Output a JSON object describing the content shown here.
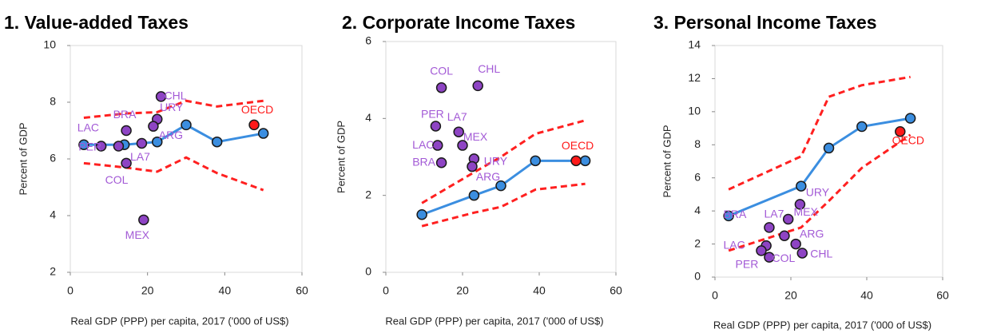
{
  "chart_data": [
    {
      "type": "scatter",
      "title": "1.  Value-added Taxes",
      "xlabel": "Real GDP (PPP) per capita, 2017 ('000 of US$)",
      "ylabel": "Percent of GDP",
      "xlim": [
        0,
        60
      ],
      "xticks": [
        0,
        20,
        40,
        60
      ],
      "ylim": [
        2,
        10
      ],
      "yticks": [
        2,
        4,
        6,
        8,
        10
      ],
      "trend": {
        "color": "#3b8ee0",
        "x": [
          3.5,
          14,
          22.5,
          30,
          38,
          50
        ],
        "values": [
          6.5,
          6.5,
          6.6,
          7.2,
          6.6,
          6.9
        ]
      },
      "upper": {
        "color": "#ff2020",
        "x": [
          3.5,
          14,
          22.5,
          30,
          38,
          50
        ],
        "values": [
          7.45,
          7.6,
          7.65,
          8.05,
          7.85,
          8.05
        ]
      },
      "lower": {
        "color": "#ff2020",
        "x": [
          3.5,
          14,
          22.5,
          30,
          38,
          50
        ],
        "values": [
          5.85,
          5.7,
          5.55,
          6.05,
          5.5,
          4.9
        ]
      },
      "points": {
        "color": "#8e44c4",
        "label_color": "#a35ad6",
        "labels": [
          "CHL",
          "URY",
          "ARG",
          "BRA",
          "LAC",
          "PER",
          "LA7",
          "COL",
          "MEX"
        ],
        "x": [
          23.5,
          22.5,
          21.5,
          14.5,
          12.5,
          8,
          18.5,
          14.5,
          19
        ],
        "values": [
          8.2,
          7.4,
          7.15,
          7.0,
          6.45,
          6.45,
          6.55,
          5.85,
          3.85
        ]
      },
      "oecd": {
        "label": "OECD",
        "color": "#ff1a1a",
        "x": 47.6,
        "value": 7.2
      }
    },
    {
      "type": "scatter",
      "title": "2.  Corporate Income Taxes",
      "xlabel": "Real GDP (PPP) per capita, 2017 ('000 of US$)",
      "ylabel": "Percent of GDP",
      "xlim": [
        0,
        60
      ],
      "xticks": [
        0,
        20,
        40,
        60
      ],
      "ylim": [
        0,
        6
      ],
      "yticks": [
        0,
        2,
        4,
        6
      ],
      "trend": {
        "color": "#3b8ee0",
        "x": [
          9.4,
          23,
          30,
          39,
          52
        ],
        "values": [
          1.5,
          2.0,
          2.25,
          2.9,
          2.9
        ]
      },
      "upper": {
        "color": "#ff2020",
        "x": [
          9.4,
          23,
          30,
          39,
          52
        ],
        "values": [
          1.8,
          2.6,
          3.0,
          3.6,
          3.95
        ]
      },
      "lower": {
        "color": "#ff2020",
        "x": [
          9.4,
          23,
          30,
          39,
          52
        ],
        "values": [
          1.2,
          1.55,
          1.7,
          2.15,
          2.3
        ]
      },
      "points": {
        "color": "#8e44c4",
        "label_color": "#a35ad6",
        "labels": [
          "COL",
          "CHL",
          "PER",
          "LA7",
          "MEX",
          "LAC",
          "URY",
          "ARG",
          "BRA"
        ],
        "x": [
          14.5,
          24,
          13,
          19,
          20,
          13.5,
          23,
          22.5,
          14.5
        ],
        "values": [
          4.8,
          4.85,
          3.8,
          3.65,
          3.3,
          3.3,
          2.95,
          2.75,
          2.85
        ]
      },
      "oecd": {
        "label": "OECD",
        "color": "#ff1a1a",
        "x": 49.6,
        "value": 2.9
      }
    },
    {
      "type": "scatter",
      "title": "3.  Personal Income Taxes",
      "xlabel": "Real GDP (PPP) per capita, 2017 ('000 of US$)",
      "ylabel": "Percent of GDP",
      "xlim": [
        0,
        60
      ],
      "xticks": [
        0,
        20,
        40,
        60
      ],
      "ylim": [
        0,
        14
      ],
      "yticks": [
        0,
        2,
        4,
        6,
        8,
        10,
        12,
        14
      ],
      "trend": {
        "color": "#3b8ee0",
        "x": [
          3.6,
          22.7,
          30,
          38.7,
          51.5
        ],
        "values": [
          3.7,
          5.5,
          7.8,
          9.1,
          9.6
        ]
      },
      "upper": {
        "color": "#ff2020",
        "x": [
          3.6,
          22.7,
          30,
          38.7,
          51.5
        ],
        "values": [
          5.3,
          7.3,
          10.9,
          11.6,
          12.1
        ]
      },
      "lower": {
        "color": "#ff2020",
        "x": [
          3.6,
          22.7,
          30,
          38.7,
          51.5
        ],
        "values": [
          1.6,
          3.0,
          4.6,
          6.6,
          8.6
        ]
      },
      "points": {
        "color": "#8e44c4",
        "label_color": "#a35ad6",
        "labels": [
          "URY",
          "MEX",
          "LA7",
          "BRA",
          "ARG",
          "LAC",
          "PER",
          "COL",
          "CHL"
        ],
        "x": [
          22.4,
          19.3,
          14.3,
          18.3,
          21.3,
          13.5,
          12.2,
          14.3,
          23
        ],
        "values": [
          4.4,
          3.5,
          3.0,
          2.5,
          2.0,
          1.9,
          1.6,
          1.2,
          1.45
        ]
      },
      "oecd": {
        "label": "OECD",
        "color": "#ff1a1a",
        "x": 48.8,
        "value": 8.8
      }
    }
  ]
}
